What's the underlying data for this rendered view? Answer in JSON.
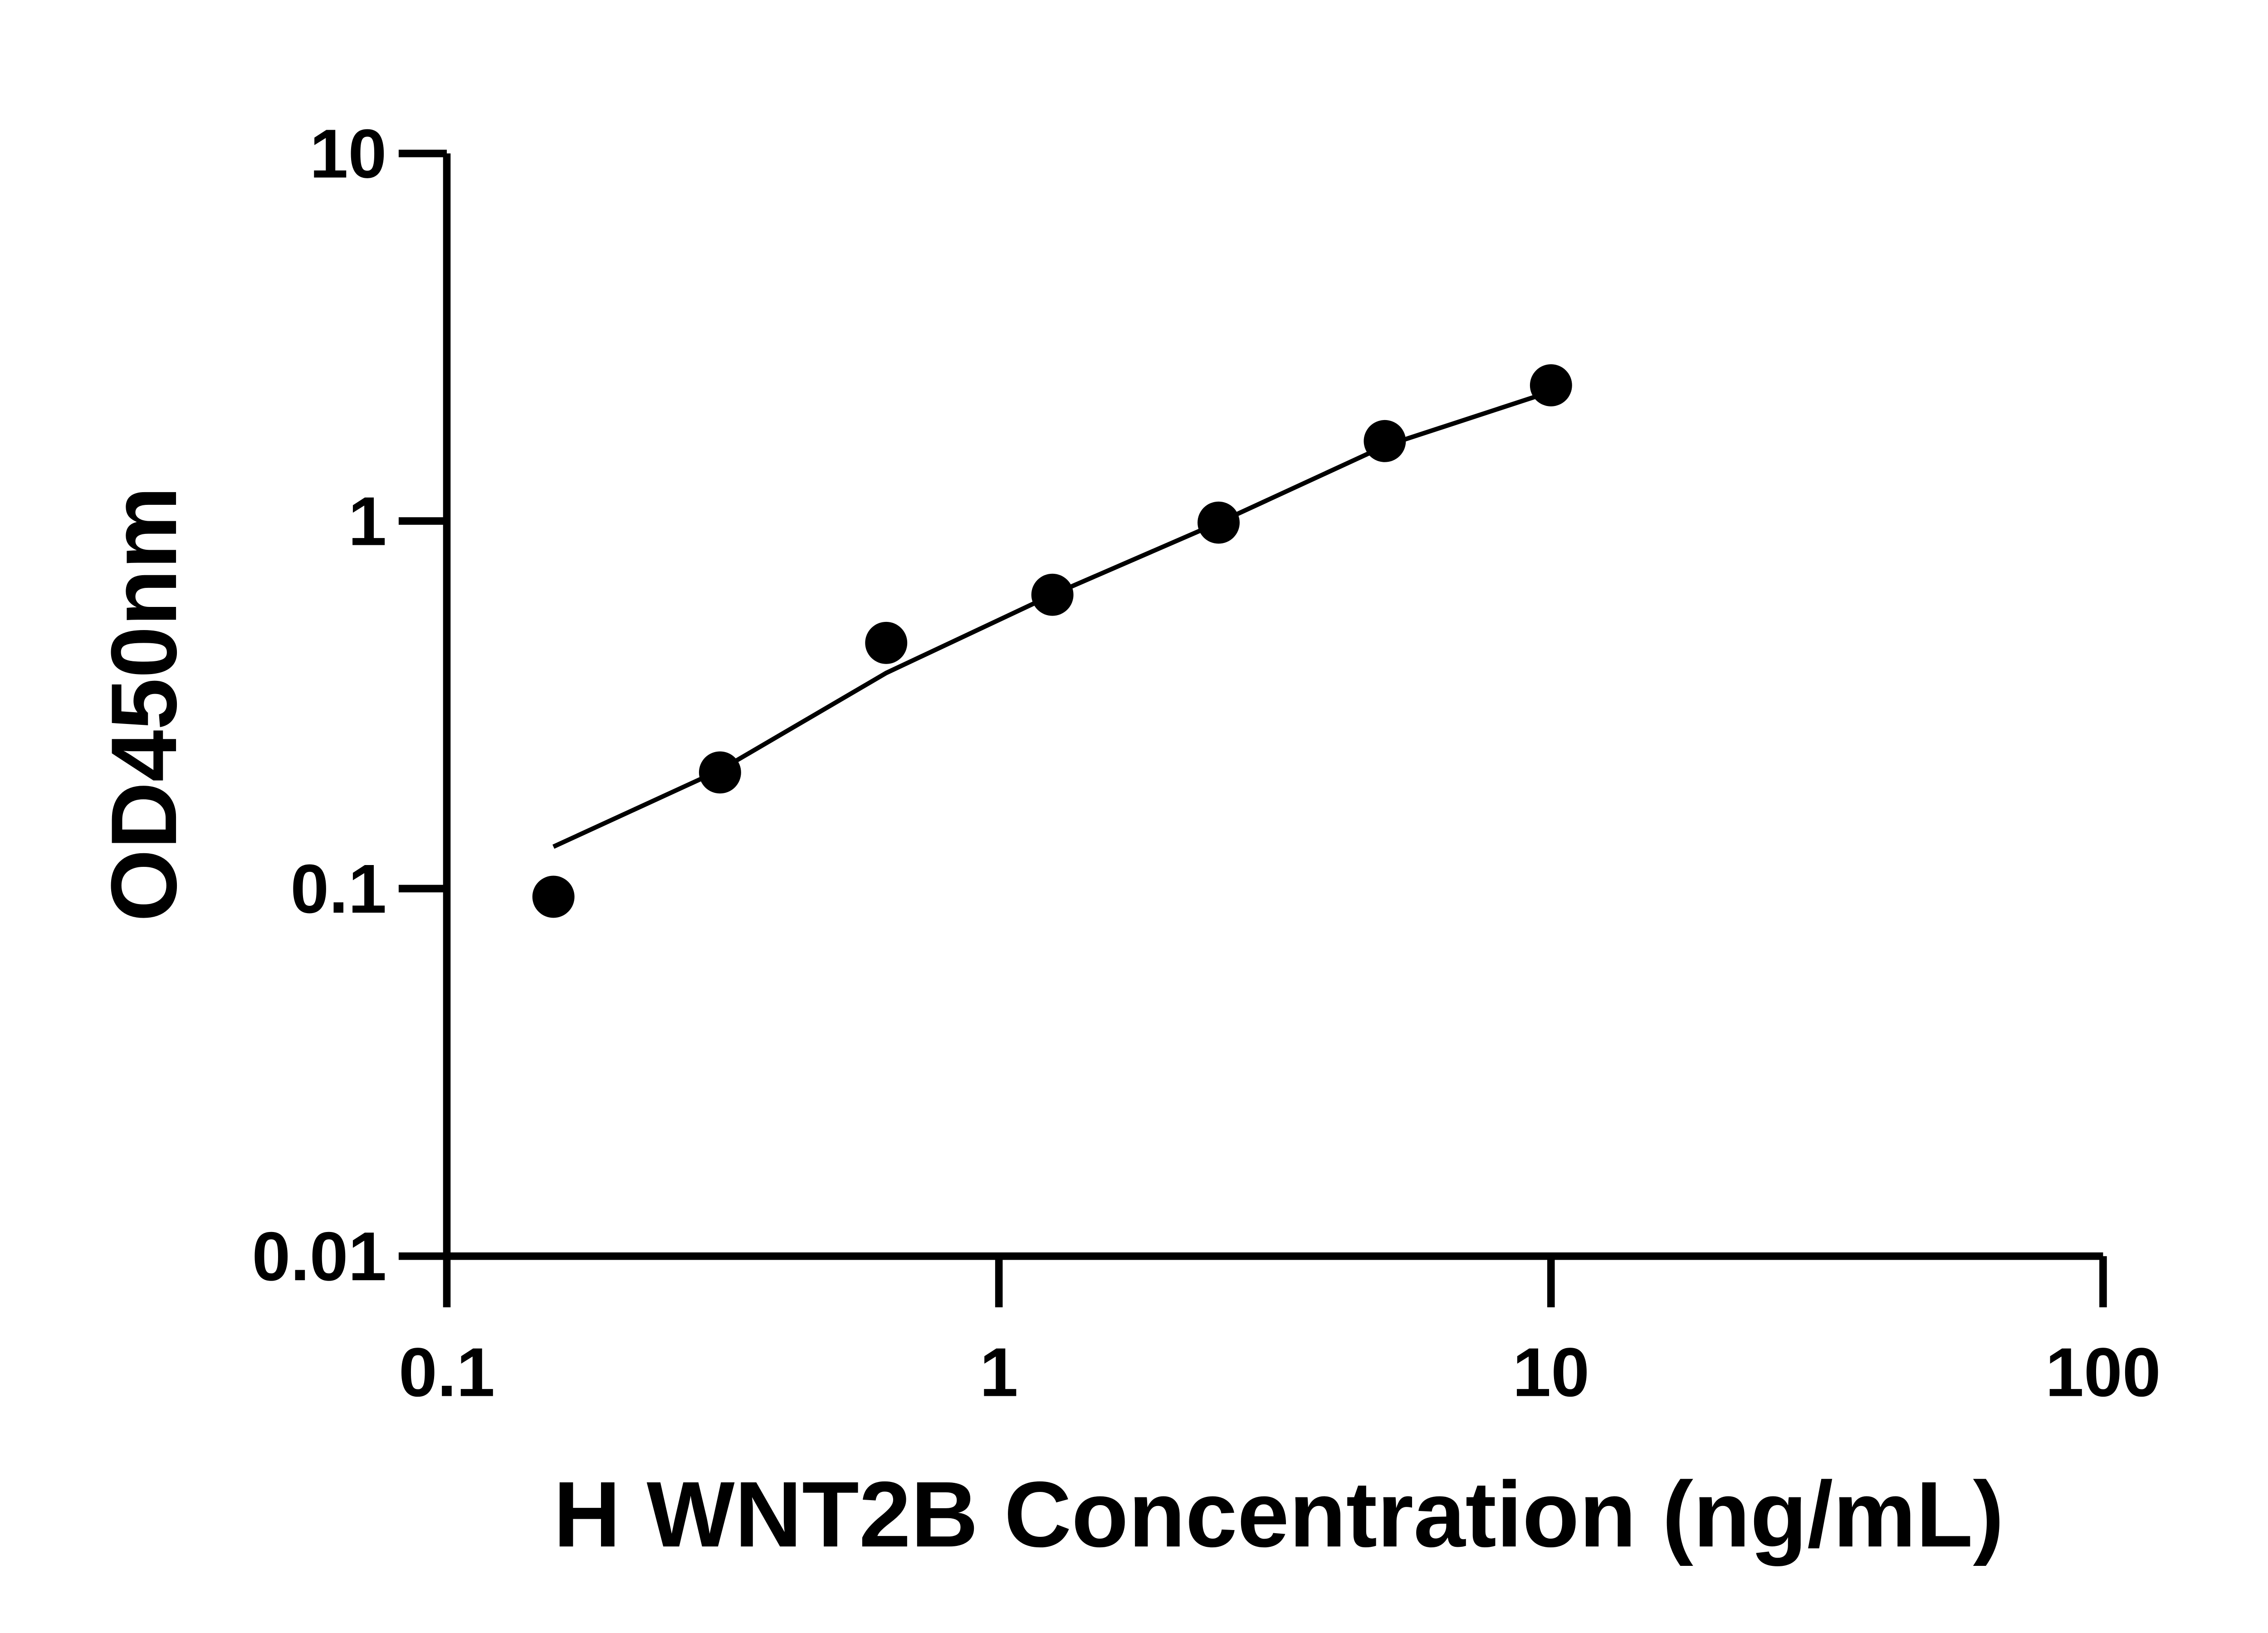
{
  "chart_data": {
    "type": "scatter",
    "xlabel": "H WNT2B Concentration (ng/mL)",
    "ylabel": "OD450nm",
    "xscale": "log",
    "yscale": "log",
    "xlim": [
      0.1,
      100
    ],
    "ylim": [
      0.01,
      10
    ],
    "xticks": [
      0.1,
      1,
      10,
      100
    ],
    "yticks": [
      0.01,
      0.1,
      1,
      10
    ],
    "series": [
      {
        "color": "#000000",
        "x": [
          0.156,
          0.3125,
          0.625,
          1.25,
          2.5,
          5,
          10
        ],
        "values": [
          0.095,
          0.207,
          0.466,
          0.63,
          0.99,
          1.65,
          2.34
        ]
      }
    ],
    "fit": {
      "color": "#000000",
      "x": [
        0.156,
        0.3125,
        0.625,
        1.25,
        2.5,
        5,
        10
      ],
      "values": [
        0.13,
        0.21,
        0.386,
        0.63,
        0.99,
        1.6,
        2.25
      ]
    }
  }
}
